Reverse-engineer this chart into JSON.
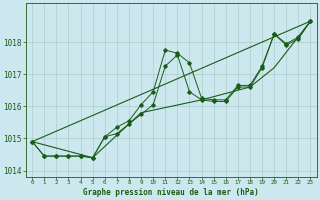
{
  "xlabel": "Graphe pression niveau de la mer (hPa)",
  "background_color": "#cce8ee",
  "grid_color": "#aacccc",
  "line_color": "#1a5c1a",
  "marker_color": "#1a5c1a",
  "ylim": [
    1013.8,
    1019.2
  ],
  "xlim": [
    -0.5,
    23.5
  ],
  "yticks": [
    1014,
    1015,
    1016,
    1017,
    1018
  ],
  "xticks": [
    0,
    1,
    2,
    3,
    4,
    5,
    6,
    7,
    8,
    9,
    10,
    11,
    12,
    13,
    14,
    15,
    16,
    17,
    18,
    19,
    20,
    21,
    22,
    23
  ],
  "series_main": {
    "x": [
      0,
      1,
      2,
      3,
      4,
      5,
      6,
      7,
      8,
      9,
      10,
      11,
      12,
      13,
      14,
      15,
      16,
      17,
      18,
      19,
      20,
      21,
      22,
      23
    ],
    "y": [
      1014.9,
      1014.45,
      1014.45,
      1014.45,
      1014.45,
      1014.4,
      1015.05,
      1015.35,
      1015.55,
      1016.05,
      1016.45,
      1017.75,
      1017.65,
      1017.35,
      1016.25,
      1016.2,
      1016.2,
      1016.65,
      1016.65,
      1017.25,
      1018.25,
      1017.95,
      1018.15,
      1018.65
    ]
  },
  "series_second": {
    "x": [
      0,
      1,
      2,
      3,
      4,
      5,
      6,
      7,
      8,
      9,
      10,
      11,
      12,
      13,
      14,
      15,
      16,
      17,
      18,
      19,
      20,
      21,
      22,
      23
    ],
    "y": [
      1014.9,
      1014.45,
      1014.45,
      1014.45,
      1014.45,
      1014.4,
      1015.05,
      1015.15,
      1015.45,
      1015.75,
      1016.05,
      1017.25,
      1017.6,
      1016.45,
      1016.2,
      1016.15,
      1016.15,
      1016.6,
      1016.6,
      1017.2,
      1018.25,
      1017.9,
      1018.1,
      1018.65
    ]
  },
  "series_linear1": {
    "x": [
      0,
      23
    ],
    "y": [
      1014.9,
      1018.65
    ]
  },
  "series_linear2": {
    "x": [
      0,
      5,
      9,
      14,
      18,
      20,
      23
    ],
    "y": [
      1014.9,
      1014.4,
      1015.8,
      1016.2,
      1016.6,
      1017.2,
      1018.65
    ]
  }
}
